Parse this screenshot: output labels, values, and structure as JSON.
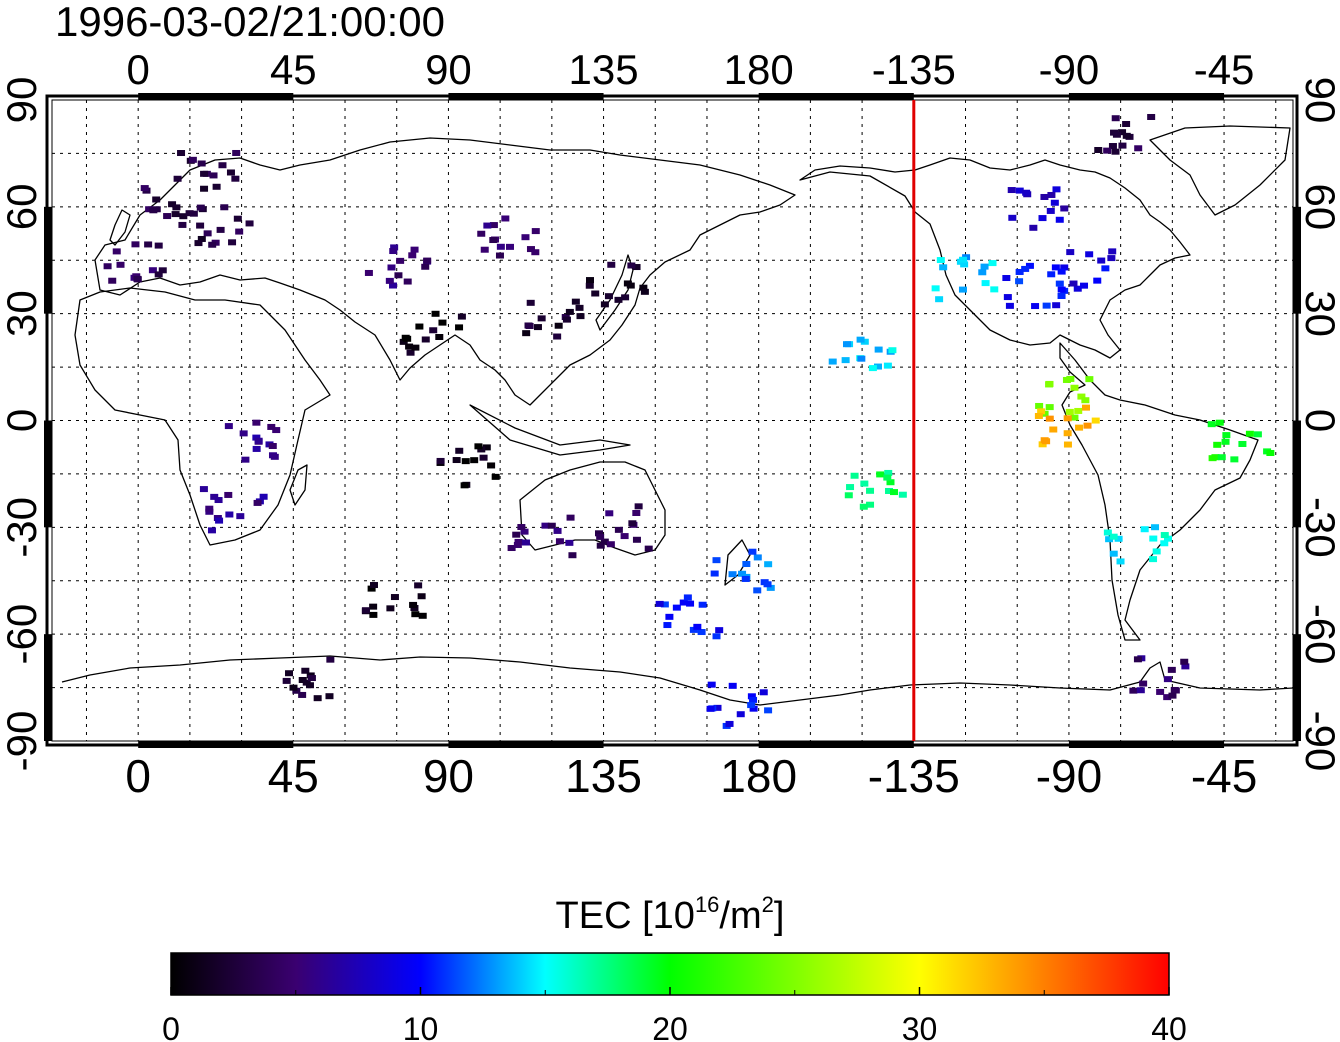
{
  "title": "1996-03-02/21:00:00",
  "map": {
    "lon_tick_labels": [
      "0",
      "45",
      "90",
      "135",
      "180",
      "-135",
      "-90",
      "-45"
    ],
    "lat_tick_labels_left": [
      "90",
      "60",
      "30",
      "0",
      "-30",
      "-60",
      "-90"
    ],
    "lat_tick_labels_right": [
      "90",
      "60",
      "30",
      "0",
      "-30",
      "-60",
      "-90"
    ],
    "lon_range_deg": [
      -25,
      335
    ],
    "lat_range_deg": [
      -90,
      90
    ],
    "grid": true,
    "terminator_longitude": -135,
    "terminator_color": "#e00000"
  },
  "colorbar": {
    "title_prefix": "TEC  [10",
    "title_exponent": "16",
    "title_mid": "/m",
    "title_exponent2": "2",
    "title_suffix": "]",
    "tick_labels": [
      "0",
      "10",
      "20",
      "30",
      "40"
    ],
    "range": [
      0,
      40
    ],
    "stops": [
      "#000000",
      "#3a0070",
      "#0000ff",
      "#00ffff",
      "#00ff00",
      "#ffff00",
      "#ff0000"
    ]
  },
  "chart_data": {
    "type": "scatter",
    "x_unit": "longitude (deg E)",
    "y_unit": "latitude (deg)",
    "value_unit": "TEC 10^16/m^2",
    "clusters": [
      {
        "lon": 10,
        "lat": 60,
        "tec": 3
      },
      {
        "lon": 20,
        "lat": 70,
        "tec": 3
      },
      {
        "lon": 0,
        "lat": 45,
        "tec": 4
      },
      {
        "lon": 25,
        "lat": 55,
        "tec": 3
      },
      {
        "lon": 75,
        "lat": 43,
        "tec": 5
      },
      {
        "lon": 108,
        "lat": 52,
        "tec": 5
      },
      {
        "lon": 120,
        "lat": 28,
        "tec": 2
      },
      {
        "lon": 140,
        "lat": 38,
        "tec": 2
      },
      {
        "lon": 85,
        "lat": 25,
        "tec": 1
      },
      {
        "lon": 35,
        "lat": -5,
        "tec": 6
      },
      {
        "lon": 28,
        "lat": -25,
        "tec": 6
      },
      {
        "lon": 117,
        "lat": -32,
        "tec": 5
      },
      {
        "lon": 140,
        "lat": -30,
        "tec": 4
      },
      {
        "lon": 95,
        "lat": -13,
        "tec": 1
      },
      {
        "lon": 75,
        "lat": -50,
        "tec": 1
      },
      {
        "lon": 175,
        "lat": -42,
        "tec": 12
      },
      {
        "lon": 160,
        "lat": -55,
        "tec": 10
      },
      {
        "lon": 210,
        "lat": 20,
        "tec": 14
      },
      {
        "lon": 215,
        "lat": -20,
        "tec": 18
      },
      {
        "lon": -120,
        "lat": 40,
        "tec": 14
      },
      {
        "lon": -100,
        "lat": 38,
        "tec": 10
      },
      {
        "lon": -85,
        "lat": 42,
        "tec": 9
      },
      {
        "lon": -100,
        "lat": 60,
        "tec": 8
      },
      {
        "lon": -90,
        "lat": 6,
        "tec": 25
      },
      {
        "lon": -90,
        "lat": -2,
        "tec": 33
      },
      {
        "lon": -70,
        "lat": -35,
        "tec": 15
      },
      {
        "lon": -40,
        "lat": -5,
        "tec": 20
      },
      {
        "lon": -65,
        "lat": -72,
        "tec": 5
      },
      {
        "lon": 175,
        "lat": -80,
        "tec": 10
      },
      {
        "lon": 50,
        "lat": -73,
        "tec": 2
      },
      {
        "lon": -75,
        "lat": 80,
        "tec": 3
      }
    ]
  }
}
